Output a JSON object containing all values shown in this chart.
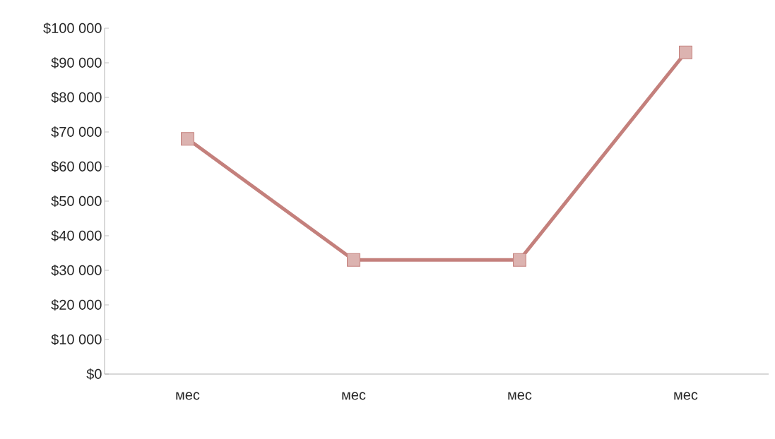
{
  "chart_data": {
    "type": "line",
    "categories": [
      "мес",
      "мес",
      "мес",
      "мес"
    ],
    "series": [
      {
        "color": "#c4807c",
        "values": [
          68000,
          33000,
          33000,
          93000
        ]
      }
    ],
    "marker": "square",
    "line_style": "solid",
    "grid": false,
    "ylim": [
      0,
      100000
    ],
    "yticks": [
      {
        "value": 0,
        "label": "$0"
      },
      {
        "value": 10000,
        "label": "$10 000"
      },
      {
        "value": 20000,
        "label": "$20 000"
      },
      {
        "value": 30000,
        "label": "$30 000"
      },
      {
        "value": 40000,
        "label": "$40 000"
      },
      {
        "value": 50000,
        "label": "$50 000"
      },
      {
        "value": 60000,
        "label": "$60 000"
      },
      {
        "value": 70000,
        "label": "$70 000"
      },
      {
        "value": 80000,
        "label": "$80 000"
      },
      {
        "value": 90000,
        "label": "$90 000"
      },
      {
        "value": 100000,
        "label": "$100 000"
      }
    ]
  }
}
